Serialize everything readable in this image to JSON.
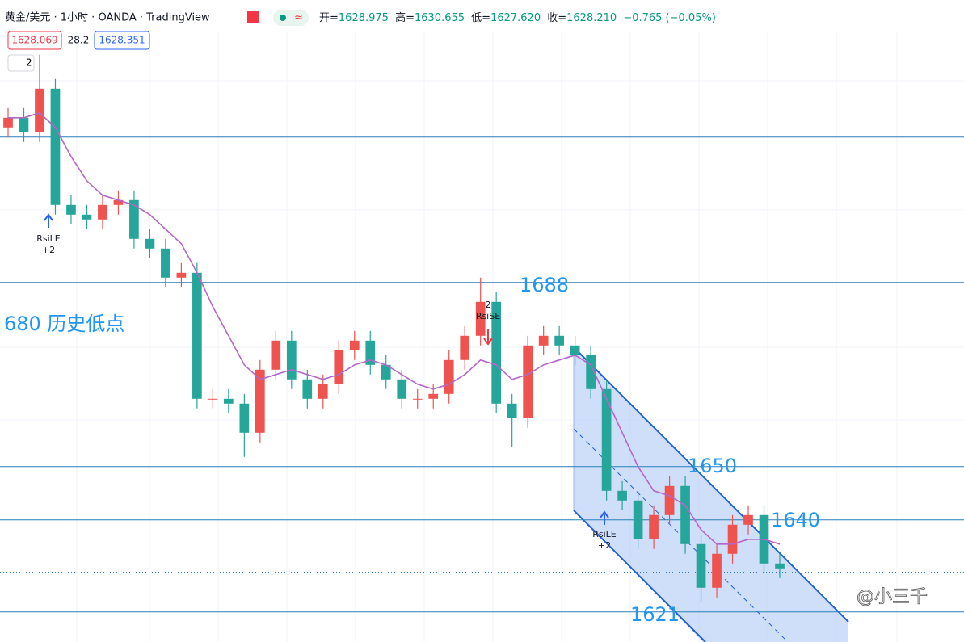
{
  "chart_data": {
    "type": "candlestick",
    "title": "黄金/美元 · 1小时 · OANDA · TradingView",
    "ohlc_labels": [
      "开=",
      "高=",
      "低=",
      "收="
    ],
    "ohlc_values": [
      "1628.975",
      "1630.655",
      "1627.620",
      "1628.210"
    ],
    "change": "−0.765 (−0.05%)",
    "badges": [
      "1628.069",
      "28.2",
      "1628.351"
    ],
    "layers": "2",
    "annotations": [
      "680 历史低点",
      "1688",
      "1650",
      "1640",
      "1621"
    ],
    "signals": [
      "RsiLE",
      "+2",
      "2",
      "RsiSE",
      "RsiLE",
      "+2"
    ],
    "watermark": "@小三千",
    "up_color": "#ef5350",
    "down_color": "#26a69a",
    "ma_color": "#b566c9",
    "level_color": "#2a7fb8",
    "ylim": [
      1613.8,
      1746.3
    ],
    "levels": [
      1718,
      1688,
      1650,
      1639,
      1620
    ],
    "last_price": 1628.21,
    "open": [
      1720,
      1722,
      1719,
      1728,
      1704,
      1702,
      1701,
      1704,
      1705,
      1697,
      1695,
      1689,
      1690,
      1664,
      1664,
      1663,
      1657,
      1670,
      1676,
      1668,
      1664,
      1667,
      1674,
      1676,
      1671,
      1668,
      1664,
      1664,
      1665,
      1672,
      1677,
      1684,
      1663,
      1660,
      1675,
      1677,
      1675,
      1673,
      1666,
      1645,
      1643,
      1635,
      1640,
      1646,
      1634,
      1625,
      1632,
      1638,
      1640,
      1630
    ],
    "high": [
      1724,
      1724,
      1735,
      1730,
      1706,
      1704,
      1706,
      1707,
      1707,
      1699,
      1697,
      1692,
      1692,
      1666,
      1666,
      1665,
      1672,
      1678,
      1678,
      1670,
      1669,
      1676,
      1678,
      1678,
      1673,
      1670,
      1666,
      1667,
      1674,
      1679,
      1689,
      1686,
      1665,
      1677,
      1679,
      1679,
      1677,
      1675,
      1668,
      1647,
      1645,
      1642,
      1648,
      1648,
      1636,
      1634,
      1640,
      1642,
      1642,
      1632
    ],
    "low": [
      1718,
      1717,
      1717,
      1702,
      1700,
      1699,
      1699,
      1702,
      1695,
      1693,
      1687,
      1687,
      1662,
      1662,
      1661,
      1652,
      1655,
      1668,
      1666,
      1662,
      1662,
      1665,
      1672,
      1669,
      1666,
      1662,
      1662,
      1662,
      1663,
      1670,
      1675,
      1661,
      1654,
      1658,
      1673,
      1673,
      1671,
      1664,
      1643,
      1641,
      1633,
      1633,
      1638,
      1632,
      1622,
      1623,
      1630,
      1636,
      1628,
      1627
    ],
    "close": [
      1722,
      1719,
      1728,
      1704,
      1702,
      1701,
      1704,
      1705,
      1697,
      1695,
      1689,
      1690,
      1664,
      1664,
      1663,
      1657,
      1670,
      1676,
      1668,
      1664,
      1667,
      1674,
      1676,
      1671,
      1668,
      1664,
      1664,
      1665,
      1672,
      1677,
      1684,
      1663,
      1660,
      1675,
      1677,
      1675,
      1673,
      1666,
      1645,
      1643,
      1635,
      1640,
      1646,
      1634,
      1625,
      1632,
      1638,
      1640,
      1630,
      1629
    ],
    "ma": [
      1722,
      1722,
      1723,
      1720,
      1714,
      1709,
      1706,
      1705,
      1704,
      1702,
      1699,
      1696,
      1690,
      1683,
      1677,
      1671,
      1668,
      1669,
      1670,
      1669,
      1668,
      1669,
      1671,
      1672,
      1671,
      1669,
      1667,
      1666,
      1667,
      1669,
      1672,
      1671,
      1668,
      1669,
      1671,
      1672,
      1673,
      1671,
      1664,
      1657,
      1650,
      1645,
      1644,
      1642,
      1637,
      1634,
      1634,
      1635,
      1635,
      1634
    ]
  }
}
